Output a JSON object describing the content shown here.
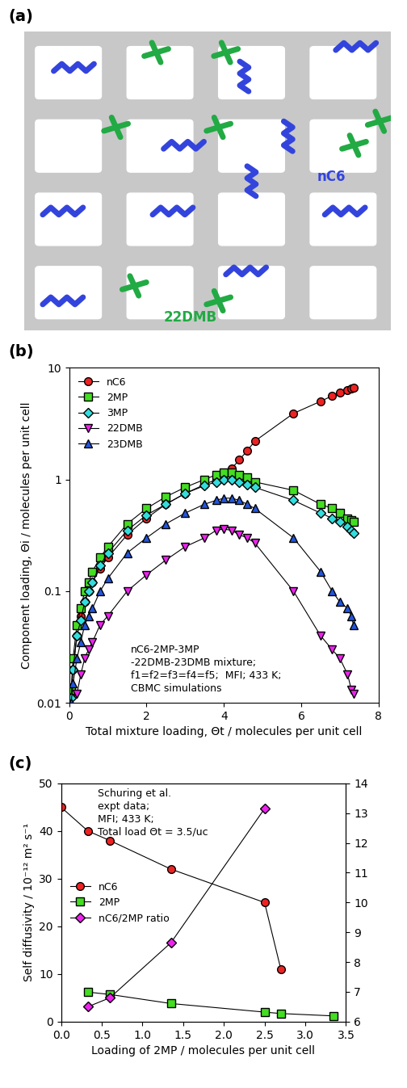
{
  "chart_data": [
    {
      "type": "diagram",
      "panel_label": "(a)",
      "labels": [
        {
          "text": "nC6",
          "color": "#3344dd"
        },
        {
          "text": "22DMB",
          "color": "#22aa44"
        }
      ]
    },
    {
      "type": "line",
      "panel_label": "(b)",
      "x_label": "Total mixture loading, Θt / molecules per unit cell",
      "y_label": "Component loading, Θi / molecules per unit cell",
      "annotation": "nC6-2MP-3MP\n-22DMB-23DMB mixture;\nf1=f2=f3=f4=f5;  MFI; 433 K;\nCBMC simulations",
      "log": "y",
      "legend": "upper left",
      "xlim": [
        0,
        8
      ],
      "xticks": [
        0,
        2,
        4,
        6,
        8
      ],
      "ylim": [
        0.01,
        10
      ],
      "yticks": [
        0.01,
        0.1,
        1,
        10
      ],
      "x": [
        0.05,
        0.1,
        0.2,
        0.3,
        0.4,
        0.5,
        0.6,
        0.8,
        1.0,
        1.5,
        2.0,
        2.5,
        3.0,
        3.5,
        3.8,
        4.0,
        4.2,
        4.4,
        4.6,
        4.8,
        5.8,
        6.5,
        6.8,
        7.0,
        7.2,
        7.3,
        7.35
      ],
      "series": [
        {
          "name": "nC6",
          "color": "#ee2222",
          "marker": "circle",
          "line_style": "solid",
          "values": [
            0.012,
            0.02,
            0.04,
            0.06,
            0.08,
            0.1,
            0.12,
            0.16,
            0.2,
            0.32,
            0.45,
            0.6,
            0.75,
            0.9,
            1.0,
            1.1,
            1.25,
            1.5,
            1.8,
            2.2,
            3.9,
            5.0,
            5.6,
            6.0,
            6.3,
            6.5,
            6.6
          ]
        },
        {
          "name": "2MP",
          "color": "#44dd22",
          "marker": "square",
          "line_style": "solid",
          "values": [
            0.013,
            0.025,
            0.05,
            0.07,
            0.1,
            0.12,
            0.15,
            0.2,
            0.25,
            0.4,
            0.55,
            0.7,
            0.85,
            1.0,
            1.1,
            1.15,
            1.15,
            1.1,
            1.05,
            0.95,
            0.8,
            0.6,
            0.55,
            0.5,
            0.45,
            0.43,
            0.42
          ]
        },
        {
          "name": "3MP",
          "color": "#33dddd",
          "marker": "diamond",
          "line_style": "solid",
          "values": [
            0.011,
            0.02,
            0.04,
            0.055,
            0.08,
            0.1,
            0.12,
            0.17,
            0.22,
            0.35,
            0.48,
            0.6,
            0.75,
            0.88,
            0.95,
            1.0,
            1.0,
            0.95,
            0.9,
            0.85,
            0.65,
            0.5,
            0.45,
            0.42,
            0.38,
            0.35,
            0.33
          ]
        },
        {
          "name": "22DMB",
          "color": "#ee22ee",
          "marker": "triangle_down",
          "line_style": "solid",
          "values": [
            null,
            null,
            0.012,
            0.018,
            0.025,
            0.03,
            0.035,
            0.05,
            0.06,
            0.1,
            0.14,
            0.19,
            0.25,
            0.3,
            0.35,
            0.36,
            0.35,
            0.32,
            0.3,
            0.27,
            0.1,
            0.04,
            0.03,
            0.025,
            0.018,
            0.013,
            0.012
          ]
        },
        {
          "name": "23DMB",
          "color": "#2255dd",
          "marker": "triangle_up",
          "line_style": "solid",
          "values": [
            0.01,
            0.015,
            0.025,
            0.035,
            0.05,
            0.06,
            0.07,
            0.1,
            0.13,
            0.22,
            0.3,
            0.4,
            0.5,
            0.6,
            0.65,
            0.68,
            0.68,
            0.65,
            0.6,
            0.55,
            0.3,
            0.15,
            0.1,
            0.08,
            0.07,
            0.06,
            0.05
          ]
        }
      ]
    },
    {
      "type": "line",
      "panel_label": "(c)",
      "x_label": "Loading of 2MP / molecules per unit cell",
      "y_label": "Self diffusivity / 10⁻¹² m² s⁻¹",
      "annotation": "Schuring et al.\nexpt data;\nMFI; 433 K;\nTotal load Θt = 3.5/uc",
      "legend": "center left",
      "xlim": [
        0.0,
        3.5
      ],
      "xticks": [
        0.0,
        0.5,
        1.0,
        1.5,
        2.0,
        2.5,
        3.0,
        3.5
      ],
      "ylim": [
        0,
        50
      ],
      "yticks": [
        0,
        10,
        20,
        30,
        40,
        50
      ],
      "y2lim": [
        6,
        14
      ],
      "y2ticks": [
        6,
        7,
        8,
        9,
        10,
        11,
        12,
        13,
        14
      ],
      "series": [
        {
          "name": "nC6",
          "color": "#ee2222",
          "marker": "circle",
          "line_style": "solid",
          "x": [
            0.0,
            0.33,
            0.6,
            1.35,
            2.5,
            2.7
          ],
          "values": [
            45,
            40,
            38,
            32,
            25,
            11
          ]
        },
        {
          "name": "2MP",
          "color": "#44dd22",
          "marker": "square",
          "line_style": "solid",
          "x": [
            0.33,
            0.6,
            1.35,
            2.5,
            2.7,
            3.35
          ],
          "values": [
            6.2,
            5.7,
            3.8,
            2.0,
            1.7,
            1.2
          ]
        },
        {
          "name": "nC6/2MP ratio",
          "color": "#ee22ee",
          "marker": "diamond",
          "line_style": "solid",
          "axis": "y2",
          "x": [
            0.33,
            0.6,
            1.35,
            2.5
          ],
          "values": [
            6.5,
            6.8,
            8.65,
            13.15
          ]
        }
      ]
    }
  ]
}
